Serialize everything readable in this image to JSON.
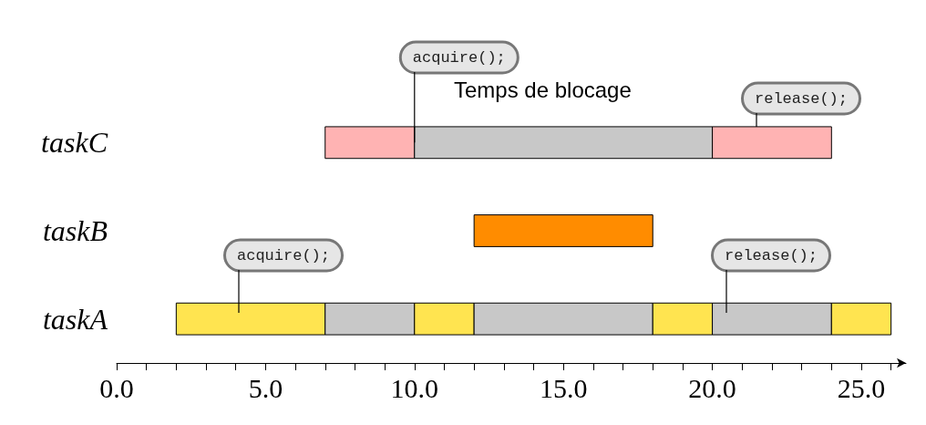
{
  "chart_data": {
    "type": "bar",
    "orientation": "horizontal",
    "categories": [
      "taskC",
      "taskB",
      "taskA"
    ],
    "xlim": [
      0,
      26.5
    ],
    "xticks": [
      {
        "value": 0,
        "label": "0.0"
      },
      {
        "value": 1,
        "label": null
      },
      {
        "value": 2,
        "label": null
      },
      {
        "value": 3,
        "label": null
      },
      {
        "value": 4,
        "label": null
      },
      {
        "value": 5,
        "label": "5.0"
      },
      {
        "value": 6,
        "label": null
      },
      {
        "value": 7,
        "label": null
      },
      {
        "value": 8,
        "label": null
      },
      {
        "value": 9,
        "label": null
      },
      {
        "value": 10,
        "label": "10.0"
      },
      {
        "value": 11,
        "label": null
      },
      {
        "value": 12,
        "label": null
      },
      {
        "value": 13,
        "label": null
      },
      {
        "value": 14,
        "label": null
      },
      {
        "value": 15,
        "label": "15.0"
      },
      {
        "value": 16,
        "label": null
      },
      {
        "value": 17,
        "label": null
      },
      {
        "value": 18,
        "label": null
      },
      {
        "value": 19,
        "label": null
      },
      {
        "value": 20,
        "label": "20.0"
      },
      {
        "value": 21,
        "label": null
      },
      {
        "value": 22,
        "label": null
      },
      {
        "value": 23,
        "label": null
      },
      {
        "value": 24,
        "label": null
      },
      {
        "value": 25,
        "label": "25.0"
      },
      {
        "value": 26,
        "label": null
      }
    ],
    "grid": false,
    "series": [
      {
        "base": [
          7,
          12,
          2
        ],
        "values": [
          3,
          6,
          5
        ],
        "colors": [
          "#ffb3b3",
          "#ff8c00",
          "#ffe450"
        ]
      },
      {
        "base": [
          10,
          null,
          7
        ],
        "values": [
          10,
          null,
          3
        ],
        "color": "#c8c8c8"
      },
      {
        "base": [
          20,
          null,
          10
        ],
        "values": [
          4,
          null,
          2
        ],
        "colors": [
          "#ffb3b3",
          null,
          "#ffe450"
        ]
      },
      {
        "base": [
          null,
          null,
          12
        ],
        "values": [
          null,
          null,
          6
        ],
        "color": "#c8c8c8"
      },
      {
        "base": [
          null,
          null,
          18
        ],
        "values": [
          null,
          null,
          2
        ],
        "colors": [
          null,
          null,
          "#ffe450"
        ]
      },
      {
        "base": [
          null,
          null,
          20
        ],
        "values": [
          null,
          null,
          4
        ],
        "color": "#c8c8c8"
      },
      {
        "base": [
          null,
          null,
          24
        ],
        "values": [
          null,
          null,
          2
        ],
        "colors": [
          null,
          null,
          "#ffe450"
        ]
      }
    ],
    "annotations": [
      {
        "text": "acquire();",
        "x": 10,
        "y": "taskC"
      },
      "release();",
      "acquire();",
      "release();",
      "Temps de blocage"
    ]
  }
}
